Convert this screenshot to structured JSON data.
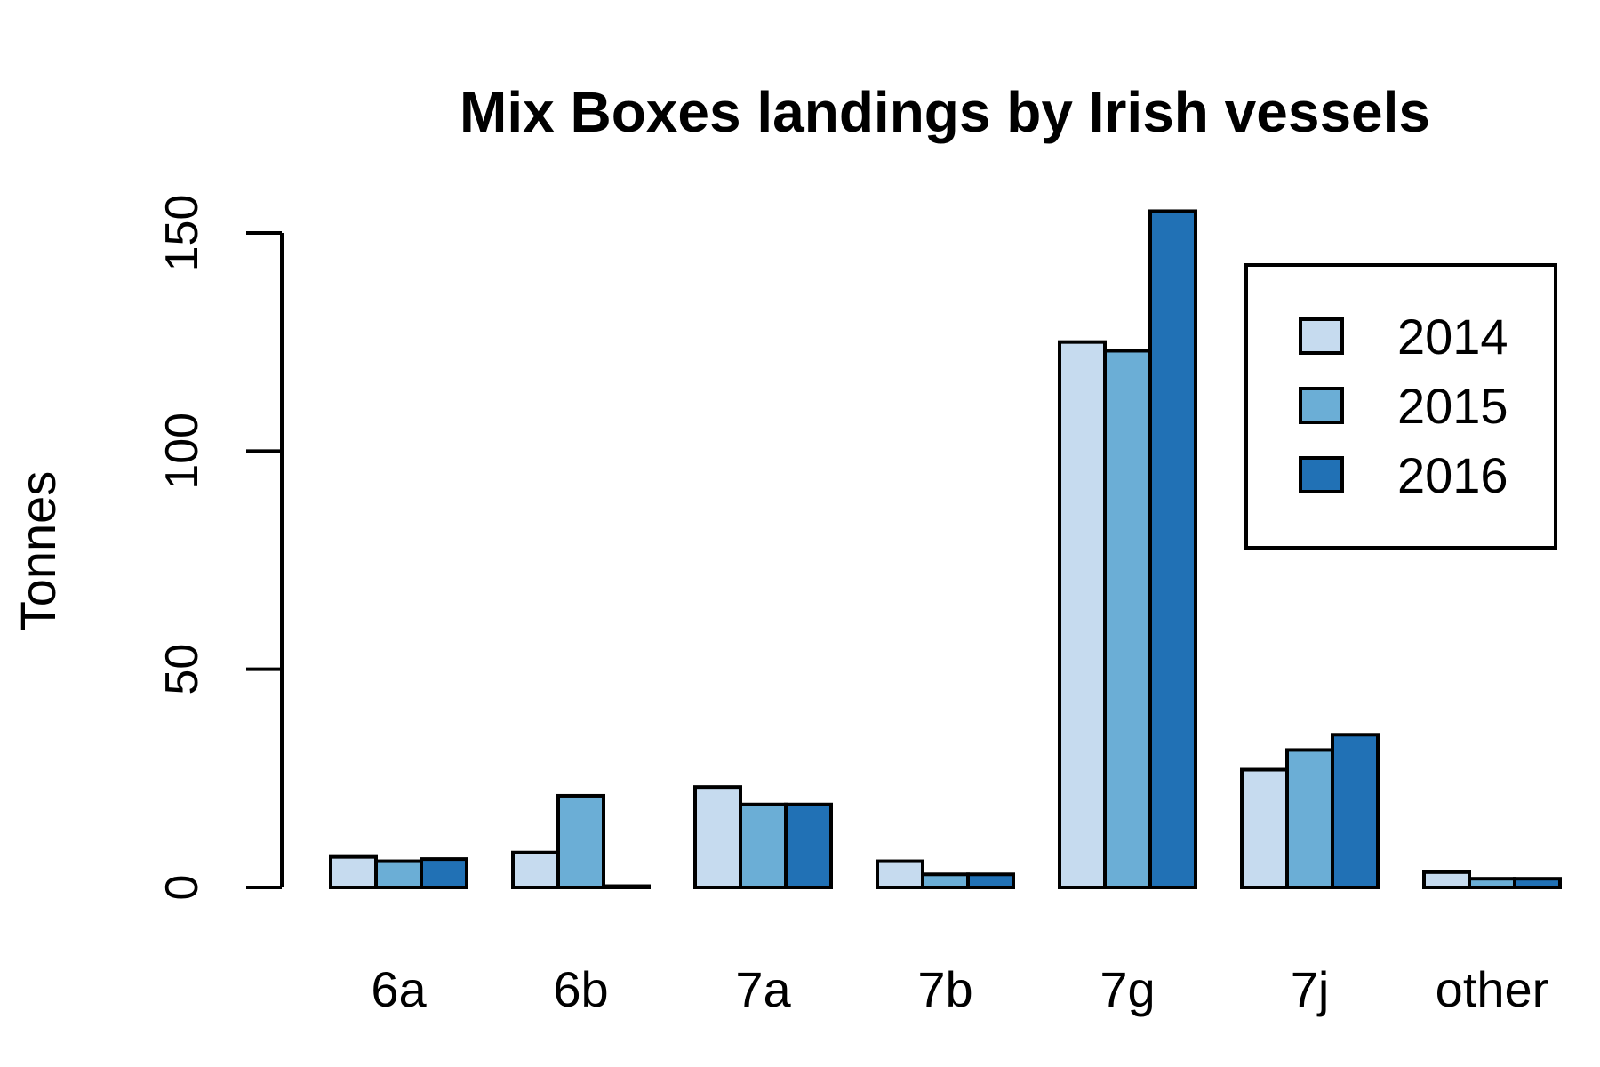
{
  "chart_data": {
    "type": "bar",
    "title": "Mix Boxes landings by Irish vessels",
    "ylabel": "Tonnes",
    "xlabel": "",
    "categories": [
      "6a",
      "6b",
      "7a",
      "7b",
      "7g",
      "7j",
      "other"
    ],
    "series": [
      {
        "name": "2014",
        "color": "#c6dbef",
        "values": [
          7,
          8,
          23,
          6,
          125,
          27,
          3.5
        ]
      },
      {
        "name": "2015",
        "color": "#6baed6",
        "values": [
          6,
          21,
          19,
          3,
          123,
          31.5,
          2
        ]
      },
      {
        "name": "2016",
        "color": "#2171b5",
        "values": [
          6.5,
          0.3,
          19,
          3,
          155,
          35,
          2
        ]
      }
    ],
    "ylim": [
      0,
      150
    ],
    "yticks": [
      0,
      50,
      100,
      150
    ],
    "grid": false,
    "legend_position": "top-right"
  }
}
